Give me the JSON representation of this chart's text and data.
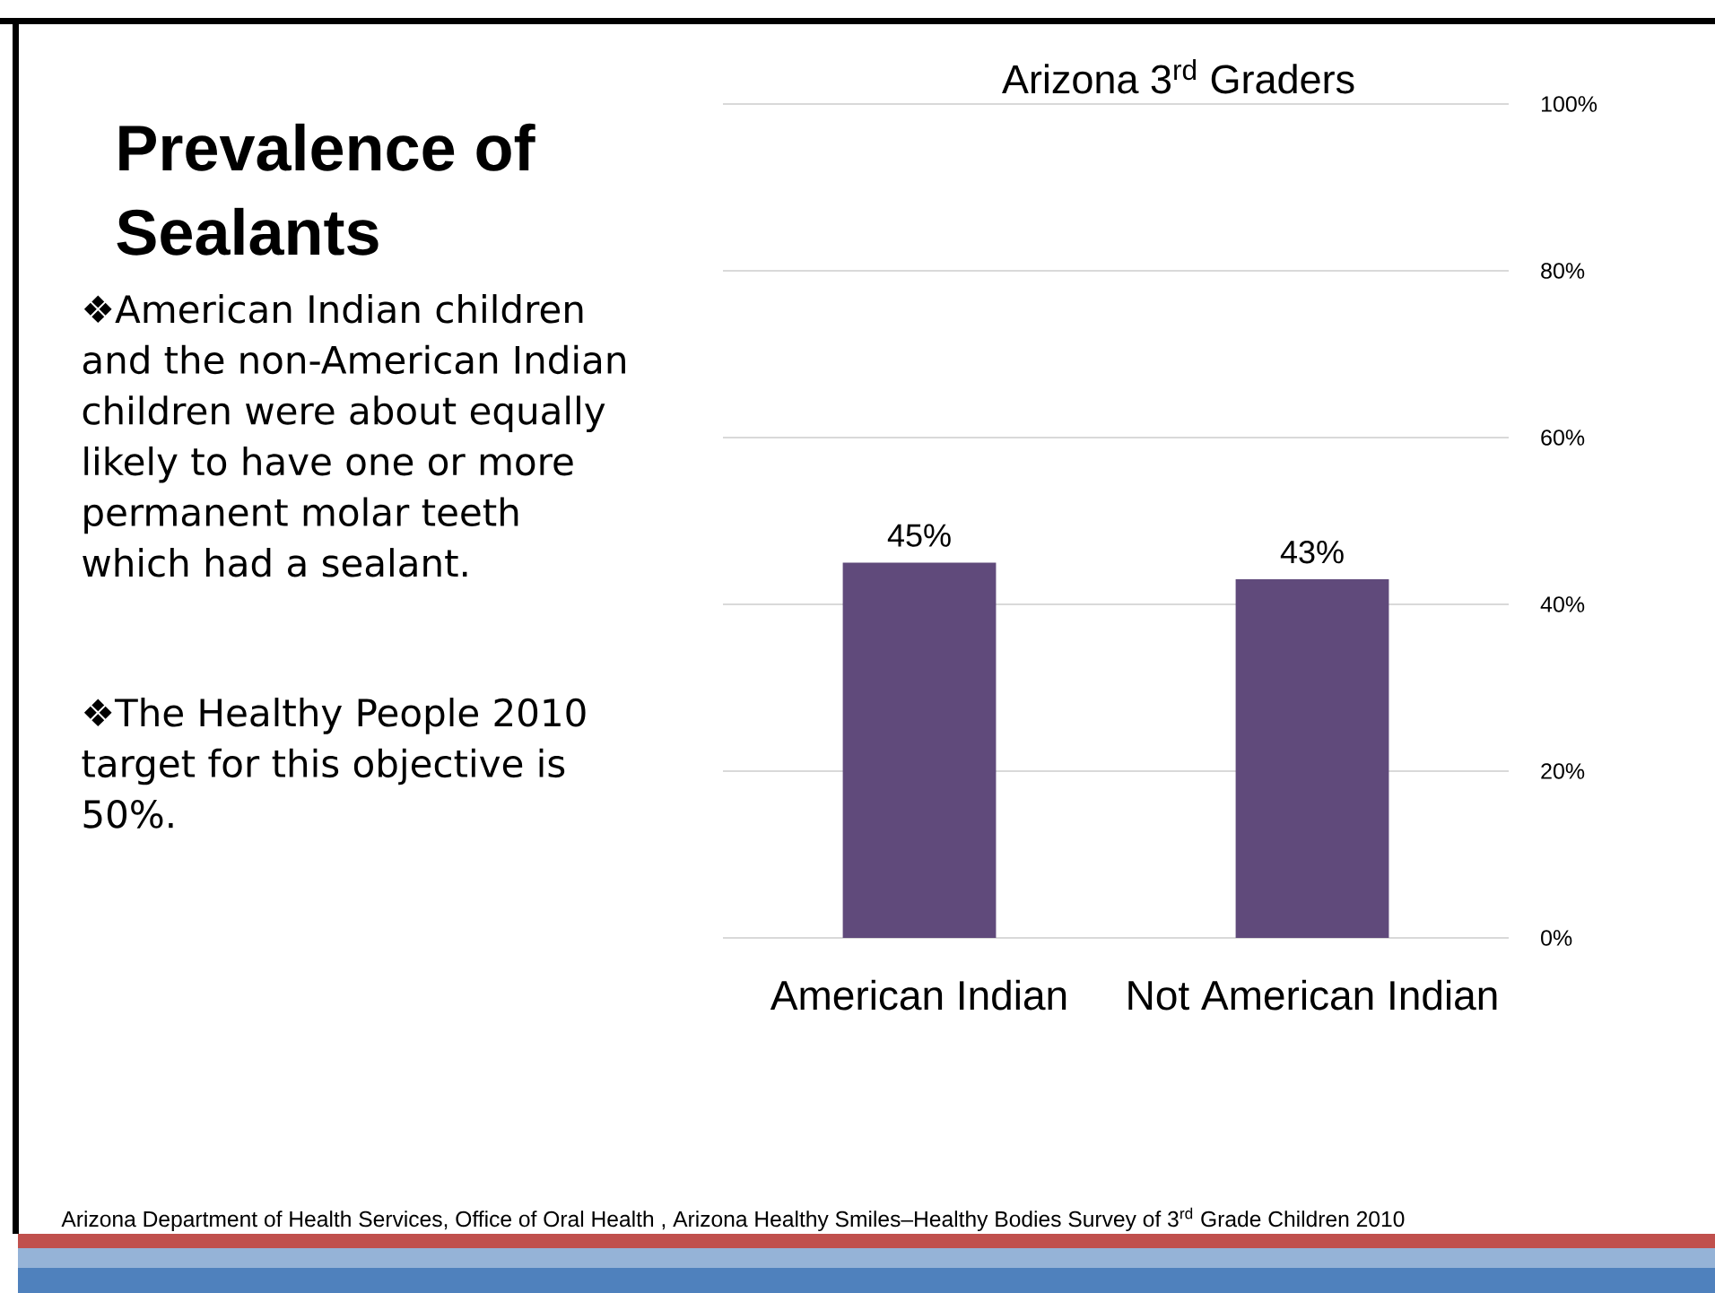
{
  "chart_data": {
    "type": "bar",
    "title": "Prevalence of Sealants",
    "subtitle": "Arizona 3$^{rd}$ Graders",
    "categories": [
      "American Indian",
      "Not American Indian"
    ],
    "values": [
      45,
      43
    ],
    "color": "#604a7b",
    "value_labels": [
      "45%",
      "43%"
    ],
    "ylim": [
      0,
      100
    ],
    "yticks": [
      {
        "value": 0,
        "label": "0%"
      },
      {
        "value": 20,
        "label": "20%"
      },
      {
        "value": 40,
        "label": "40%"
      },
      {
        "value": 60,
        "label": "60%"
      },
      {
        "value": 80,
        "label": "80%"
      },
      {
        "value": 100,
        "label": "100%"
      }
    ],
    "grid": "y",
    "annotations": [
      "❖American Indian children and the non-American Indian children were about equally likely to have one or more permanent molar teeth which had a sealant.",
      "❖The Healthy People 2010 target for this objective is 50%.",
      "Arizona Department of Health Services, Office of Oral Health , Arizona Healthy Smiles–Healthy Bodies Survey of 3$^{rd}$ Grade Children 2010"
    ]
  }
}
